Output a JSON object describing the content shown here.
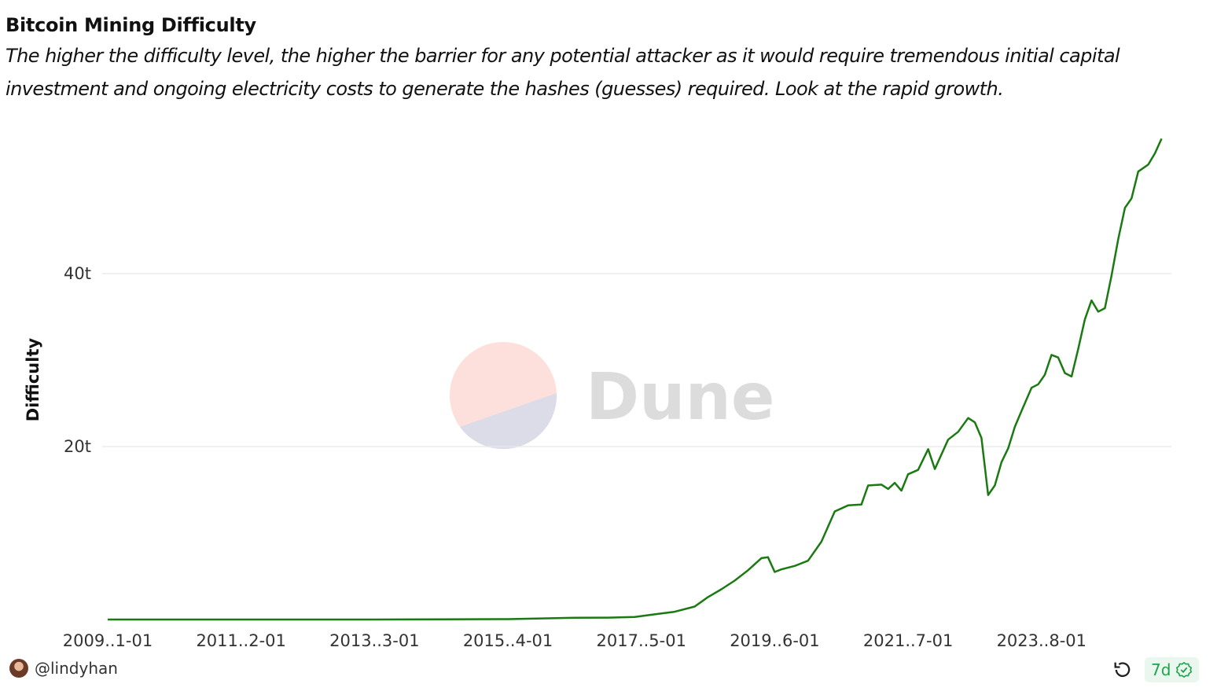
{
  "header": {
    "title": "Bitcoin Mining Difficulty",
    "subtitle": "The higher the difficulty level, the higher the barrier for any potential attacker as it would require tremendous initial capital investment and ongoing electricity costs to generate the hashes (guesses) required. Look at the rapid growth."
  },
  "watermark": {
    "text": "Dune"
  },
  "footer": {
    "author": "@lindyhan",
    "age": "7d"
  },
  "colors": {
    "line": "#1a7a12",
    "grid": "#e8e8e8",
    "watermark_top": "#fde0dc",
    "watermark_bottom": "#dcdbe8",
    "badge_green": "#1fa34a"
  },
  "chart_data": {
    "type": "line",
    "title": "",
    "xlabel": "",
    "ylabel": "Difficulty",
    "x_tick_labels": [
      "2009..1-01",
      "2011..2-01",
      "2013..3-01",
      "2015..4-01",
      "2017..5-01",
      "2019..6-01",
      "2021..7-01",
      "2023..8-01"
    ],
    "y_tick_labels": [
      "20t",
      "40t"
    ],
    "y_ticks": [
      20000000000000,
      40000000000000
    ],
    "ylim": [
      0,
      60000000000000
    ],
    "grid": true,
    "legend": "none",
    "series": [
      {
        "values": [
          [
            2009.0,
            0.0
          ],
          [
            2010.0,
            0.0
          ],
          [
            2011.0,
            0.0
          ],
          [
            2012.0,
            0.0
          ],
          [
            2013.0,
            0.0
          ],
          [
            2014.0,
            0.02
          ],
          [
            2015.0,
            0.05
          ],
          [
            2016.0,
            0.2
          ],
          [
            2016.5,
            0.22
          ],
          [
            2016.9,
            0.3
          ],
          [
            2017.2,
            0.6
          ],
          [
            2017.5,
            0.9
          ],
          [
            2017.8,
            1.5
          ],
          [
            2018.0,
            2.6
          ],
          [
            2018.2,
            3.5
          ],
          [
            2018.4,
            4.5
          ],
          [
            2018.6,
            5.7
          ],
          [
            2018.8,
            7.1
          ],
          [
            2018.9,
            7.2
          ],
          [
            2019.0,
            5.5
          ],
          [
            2019.1,
            5.8
          ],
          [
            2019.3,
            6.2
          ],
          [
            2019.5,
            6.8
          ],
          [
            2019.7,
            9.0
          ],
          [
            2019.9,
            12.5
          ],
          [
            2020.1,
            13.2
          ],
          [
            2020.3,
            13.3
          ],
          [
            2020.4,
            15.5
          ],
          [
            2020.6,
            15.6
          ],
          [
            2020.7,
            15.1
          ],
          [
            2020.8,
            15.8
          ],
          [
            2020.9,
            14.9
          ],
          [
            2021.0,
            16.8
          ],
          [
            2021.15,
            17.3
          ],
          [
            2021.3,
            19.7
          ],
          [
            2021.4,
            17.4
          ],
          [
            2021.6,
            20.8
          ],
          [
            2021.75,
            21.7
          ],
          [
            2021.9,
            23.3
          ],
          [
            2022.0,
            22.8
          ],
          [
            2022.1,
            21.0
          ],
          [
            2022.2,
            14.4
          ],
          [
            2022.3,
            15.5
          ],
          [
            2022.4,
            18.2
          ],
          [
            2022.5,
            19.8
          ],
          [
            2022.6,
            22.3
          ],
          [
            2022.7,
            24.1
          ],
          [
            2022.85,
            26.8
          ],
          [
            2022.95,
            27.2
          ],
          [
            2023.05,
            28.3
          ],
          [
            2023.15,
            30.6
          ],
          [
            2023.25,
            30.3
          ],
          [
            2023.35,
            28.5
          ],
          [
            2023.45,
            28.1
          ],
          [
            2023.55,
            31.3
          ],
          [
            2023.65,
            34.7
          ],
          [
            2023.75,
            36.9
          ],
          [
            2023.85,
            35.6
          ],
          [
            2023.95,
            36.0
          ],
          [
            2024.05,
            39.8
          ],
          [
            2024.15,
            44.0
          ],
          [
            2024.25,
            47.6
          ],
          [
            2024.35,
            48.7
          ],
          [
            2024.45,
            51.8
          ],
          [
            2024.6,
            52.6
          ],
          [
            2024.7,
            53.9
          ],
          [
            2024.8,
            55.6
          ]
        ]
      }
    ],
    "xlim": [
      2009.0,
      2024.9
    ],
    "x_tick_positions": [
      2009.0,
      2011.0,
      2013.0,
      2015.0,
      2017.0,
      2019.0,
      2021.0,
      2023.0
    ],
    "values_unit": "t (trillions)"
  }
}
